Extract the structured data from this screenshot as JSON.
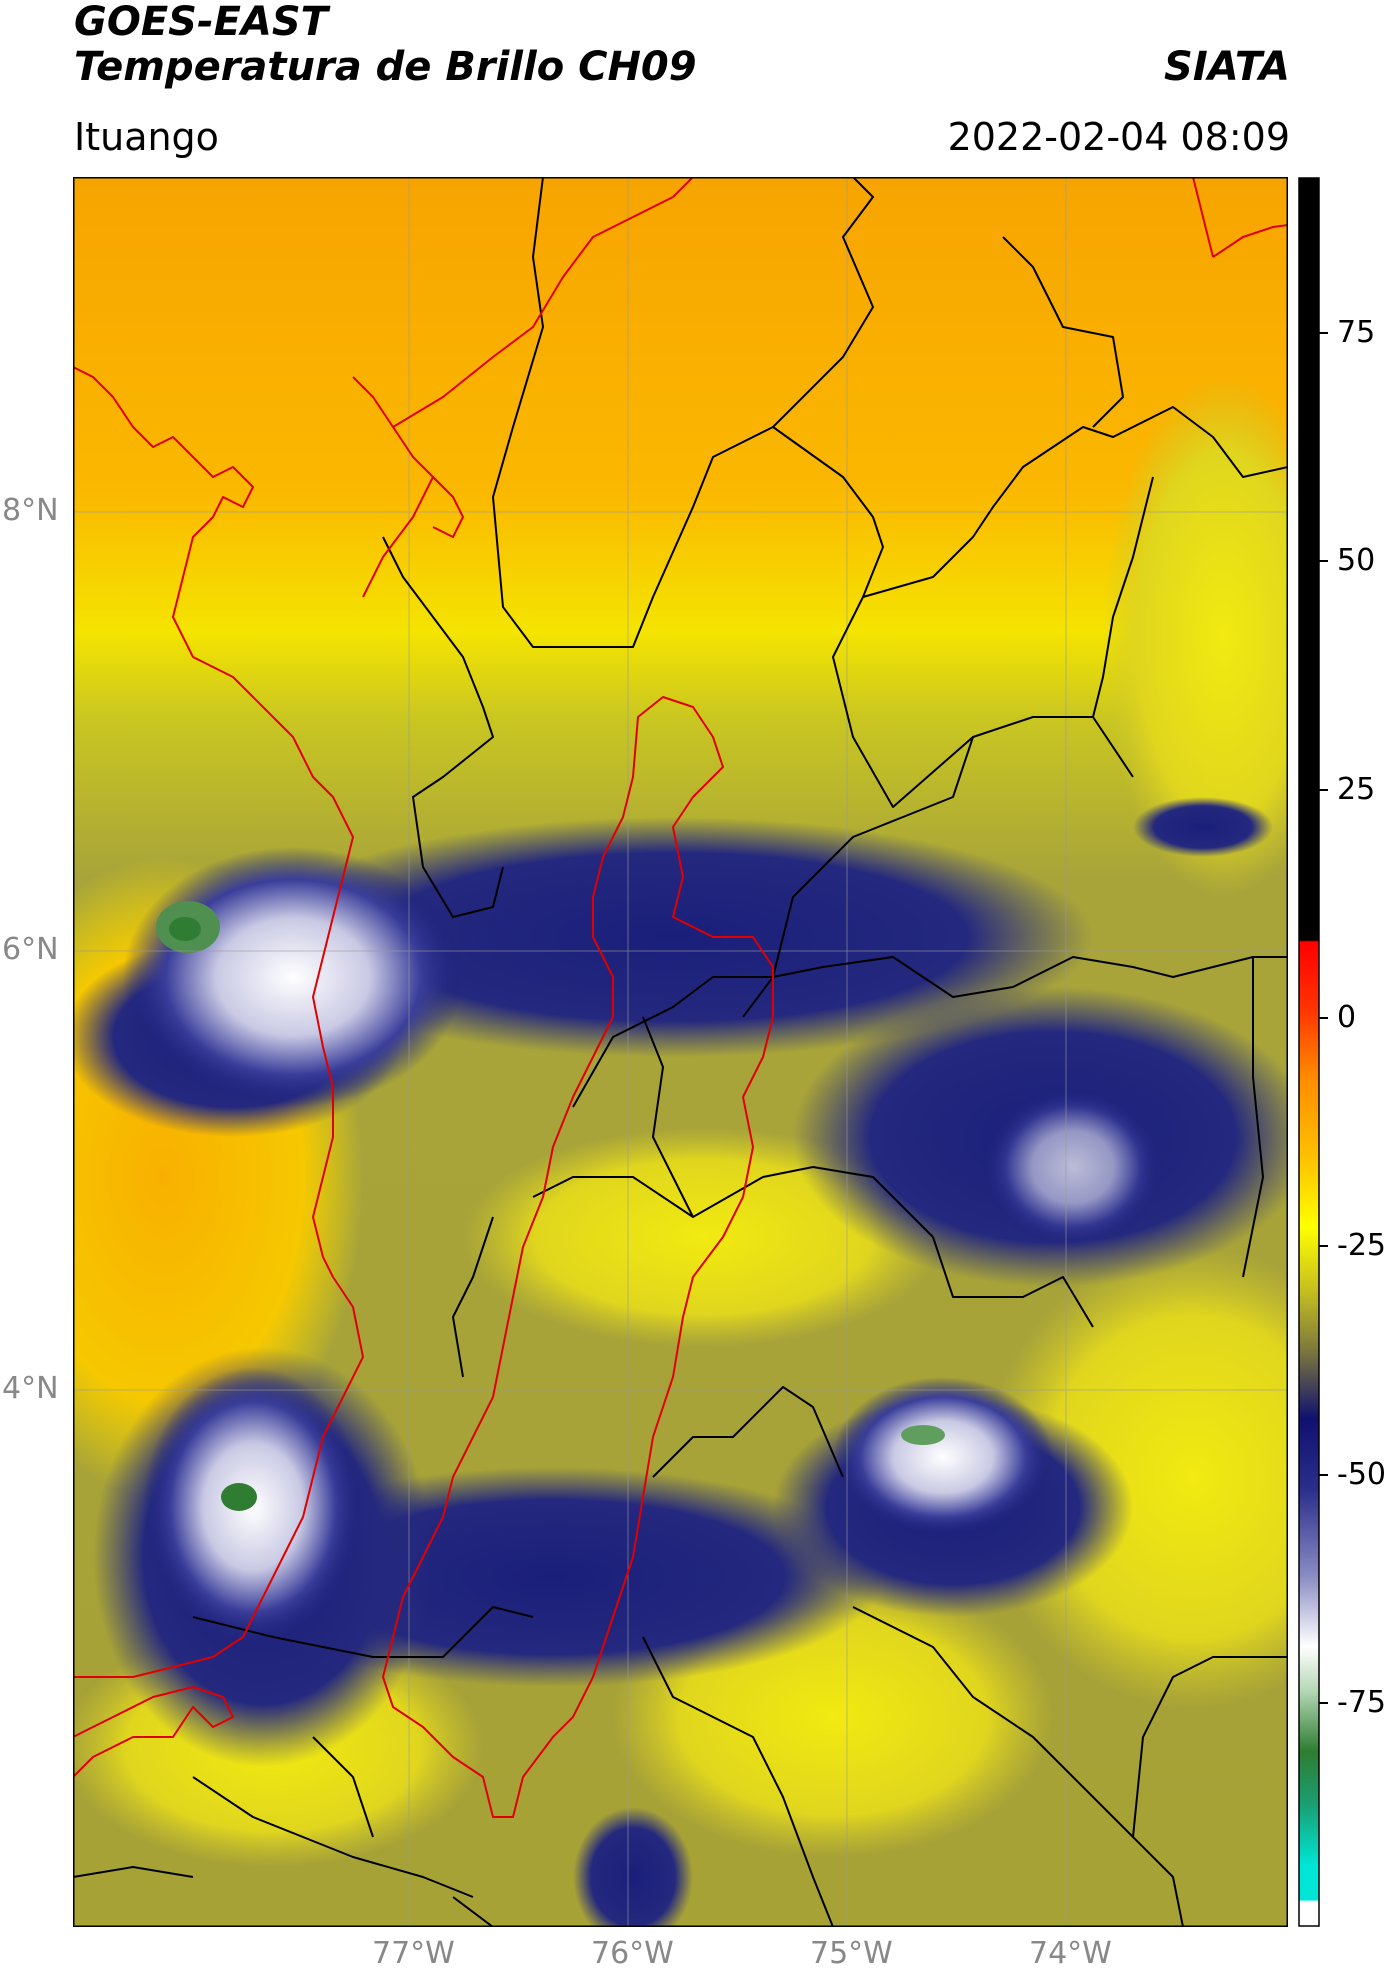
{
  "header": {
    "satellite": "GOES-EAST",
    "product": "Temperatura de Brillo CH09",
    "brand": "SIATA",
    "location": "Ituango",
    "timestamp": "2022-02-04 08:09"
  },
  "map": {
    "projection": "lat-lon",
    "gridlines": true,
    "lat_labels": [
      "8°N",
      "6°N",
      "4°N"
    ],
    "lon_labels": [
      "77°W",
      "76°W",
      "75°W",
      "74°W"
    ],
    "colors": {
      "border_country_coast": "#e00000",
      "border_departments": "#000000",
      "grid": "#9a9a9a"
    }
  },
  "colorbar": {
    "orientation": "vertical",
    "tick_labels": [
      "75",
      "50",
      "25",
      "0",
      "-25",
      "-50",
      "-75"
    ],
    "colors": {
      "black": "#000000",
      "red": "#ff0000",
      "orange": "#ffa500",
      "yellow": "#ffff00",
      "olive": "#8b8b3a",
      "navy": "#10106e",
      "white": "#ffffff",
      "green": "#2e7d32",
      "cyan": "#00e5d5"
    }
  }
}
